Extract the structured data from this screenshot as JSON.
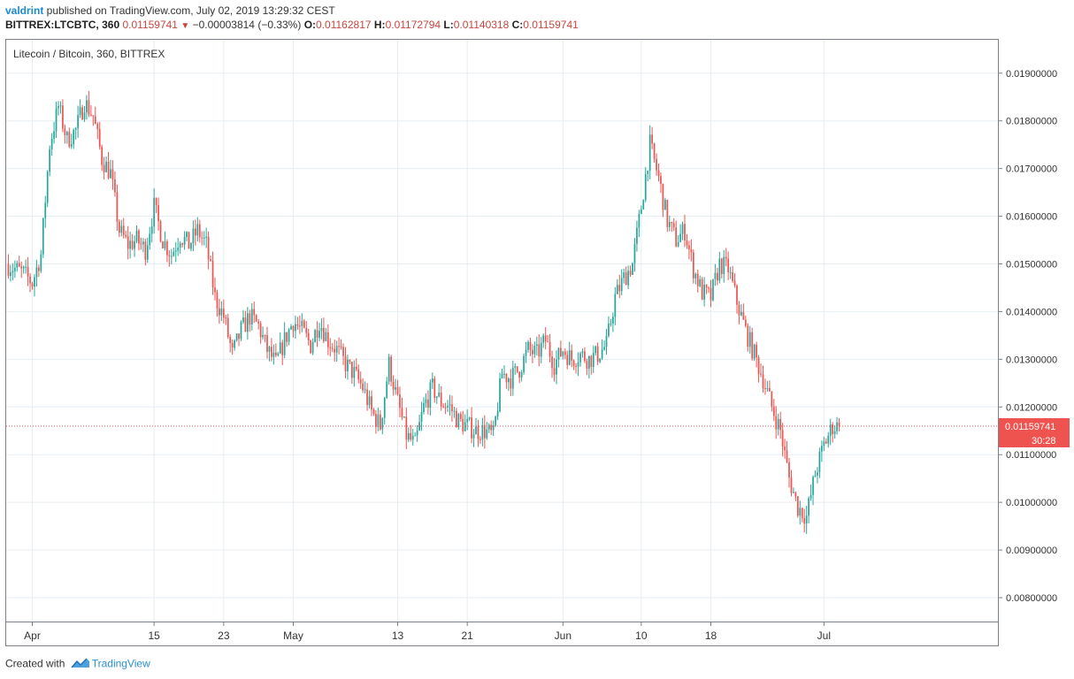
{
  "header": {
    "user": "valdrint",
    "published_text": " published on TradingView.com, July 02, 2019 13:29:32 CEST",
    "symbol": "BITTREX:LTCBTC, 360",
    "last": "0.01159741",
    "change_arrow": "▼",
    "change": "−0.00003814 (−0.33%)",
    "o_label": "O:",
    "o_value": "0.01162817",
    "h_label": "H:",
    "h_value": "0.01172794",
    "l_label": "L:",
    "l_value": "0.01140318",
    "c_label": "C:",
    "c_value": "0.01159741"
  },
  "legend": "Litecoin / Bitcoin, 360, BITTREX",
  "price_tag": {
    "value": "0.01159741",
    "countdown": "30:28"
  },
  "footer": {
    "created_with": "Created with",
    "brand": "TradingView"
  },
  "colors": {
    "up": "#26a69a",
    "down": "#ef5350",
    "grid": "#e6eef2",
    "axis": "#7c8189",
    "price_line": "#ef5350"
  },
  "chart_data": {
    "type": "candlestick",
    "title": "Litecoin / Bitcoin, 360, BITTREX",
    "ylim": [
      0.0075,
      0.0197
    ],
    "yticks": [
      "0.00800000",
      "0.00900000",
      "0.01000000",
      "0.01100000",
      "0.01200000",
      "0.01300000",
      "0.01400000",
      "0.01500000",
      "0.01600000",
      "0.01700000",
      "0.01800000",
      "0.01900000"
    ],
    "xlim": [
      "2019-03-29",
      "2019-07-21"
    ],
    "xticks": [
      {
        "label": "Apr",
        "date": "2019-04-01"
      },
      {
        "label": "15",
        "date": "2019-04-15"
      },
      {
        "label": "23",
        "date": "2019-04-23"
      },
      {
        "label": "May",
        "date": "2019-05-01"
      },
      {
        "label": "13",
        "date": "2019-05-13"
      },
      {
        "label": "21",
        "date": "2019-05-21"
      },
      {
        "label": "Jun",
        "date": "2019-06-01"
      },
      {
        "label": "10",
        "date": "2019-06-10"
      },
      {
        "label": "18",
        "date": "2019-06-18"
      },
      {
        "label": "Jul",
        "date": "2019-07-01"
      }
    ],
    "current_price": 0.01159741,
    "close_path": [
      [
        "2019-03-29",
        0.015
      ],
      [
        "2019-03-31",
        0.0148
      ],
      [
        "2019-04-01",
        0.0146
      ],
      [
        "2019-04-02",
        0.0152
      ],
      [
        "2019-04-03",
        0.0175
      ],
      [
        "2019-04-04",
        0.0183
      ],
      [
        "2019-04-05",
        0.0176
      ],
      [
        "2019-04-06",
        0.0178
      ],
      [
        "2019-04-07",
        0.0184
      ],
      [
        "2019-04-08",
        0.0181
      ],
      [
        "2019-04-09",
        0.0172
      ],
      [
        "2019-04-10",
        0.0169
      ],
      [
        "2019-04-11",
        0.0157
      ],
      [
        "2019-04-12",
        0.0154
      ],
      [
        "2019-04-13",
        0.0155
      ],
      [
        "2019-04-14",
        0.0153
      ],
      [
        "2019-04-15",
        0.0162
      ],
      [
        "2019-04-16",
        0.0155
      ],
      [
        "2019-04-17",
        0.0152
      ],
      [
        "2019-04-18",
        0.0156
      ],
      [
        "2019-04-19",
        0.0154
      ],
      [
        "2019-04-20",
        0.0157
      ],
      [
        "2019-04-21",
        0.0154
      ],
      [
        "2019-04-22",
        0.0143
      ],
      [
        "2019-04-23",
        0.0139
      ],
      [
        "2019-04-24",
        0.0131
      ],
      [
        "2019-04-25",
        0.0136
      ],
      [
        "2019-04-26",
        0.0139
      ],
      [
        "2019-04-27",
        0.0137
      ],
      [
        "2019-04-28",
        0.0132
      ],
      [
        "2019-04-29",
        0.0129
      ],
      [
        "2019-04-30",
        0.0134
      ],
      [
        "2019-05-01",
        0.0138
      ],
      [
        "2019-05-02",
        0.0136
      ],
      [
        "2019-05-03",
        0.0133
      ],
      [
        "2019-05-04",
        0.0138
      ],
      [
        "2019-05-05",
        0.0134
      ],
      [
        "2019-05-06",
        0.0132
      ],
      [
        "2019-05-07",
        0.0129
      ],
      [
        "2019-05-08",
        0.0127
      ],
      [
        "2019-05-09",
        0.0124
      ],
      [
        "2019-05-10",
        0.0119
      ],
      [
        "2019-05-11",
        0.0116
      ],
      [
        "2019-05-12",
        0.0129
      ],
      [
        "2019-05-13",
        0.0121
      ],
      [
        "2019-05-14",
        0.0114
      ],
      [
        "2019-05-15",
        0.0112
      ],
      [
        "2019-05-16",
        0.012
      ],
      [
        "2019-05-17",
        0.0124
      ],
      [
        "2019-05-18",
        0.0121
      ],
      [
        "2019-05-19",
        0.012
      ],
      [
        "2019-05-20",
        0.0117
      ],
      [
        "2019-05-21",
        0.0116
      ],
      [
        "2019-05-22",
        0.0115
      ],
      [
        "2019-05-23",
        0.0115
      ],
      [
        "2019-05-24",
        0.0114
      ],
      [
        "2019-05-25",
        0.0127
      ],
      [
        "2019-05-26",
        0.0126
      ],
      [
        "2019-05-27",
        0.0128
      ],
      [
        "2019-05-28",
        0.0132
      ],
      [
        "2019-05-29",
        0.0131
      ],
      [
        "2019-05-30",
        0.0134
      ],
      [
        "2019-05-31",
        0.0129
      ],
      [
        "2019-06-01",
        0.0132
      ],
      [
        "2019-06-02",
        0.013
      ],
      [
        "2019-06-03",
        0.0131
      ],
      [
        "2019-06-04",
        0.013
      ],
      [
        "2019-06-05",
        0.0131
      ],
      [
        "2019-06-06",
        0.0133
      ],
      [
        "2019-06-07",
        0.0143
      ],
      [
        "2019-06-08",
        0.0147
      ],
      [
        "2019-06-09",
        0.015
      ],
      [
        "2019-06-10",
        0.0162
      ],
      [
        "2019-06-11",
        0.0175
      ],
      [
        "2019-06-12",
        0.0168
      ],
      [
        "2019-06-13",
        0.0159
      ],
      [
        "2019-06-14",
        0.0155
      ],
      [
        "2019-06-15",
        0.0157
      ],
      [
        "2019-06-16",
        0.0149
      ],
      [
        "2019-06-17",
        0.0144
      ],
      [
        "2019-06-18",
        0.0143
      ],
      [
        "2019-06-19",
        0.015
      ],
      [
        "2019-06-20",
        0.0149
      ],
      [
        "2019-06-21",
        0.0142
      ],
      [
        "2019-06-22",
        0.0136
      ],
      [
        "2019-06-23",
        0.0131
      ],
      [
        "2019-06-24",
        0.0126
      ],
      [
        "2019-06-25",
        0.012
      ],
      [
        "2019-06-26",
        0.0115
      ],
      [
        "2019-06-27",
        0.0105
      ],
      [
        "2019-06-28",
        0.0099
      ],
      [
        "2019-06-29",
        0.0097
      ],
      [
        "2019-06-30",
        0.0106
      ],
      [
        "2019-07-01",
        0.0112
      ],
      [
        "2019-07-02",
        0.01159741
      ]
    ]
  }
}
